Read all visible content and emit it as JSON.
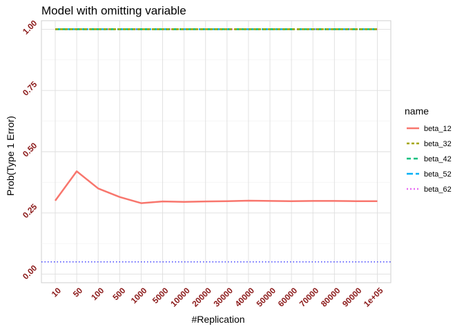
{
  "chart_data": {
    "type": "line",
    "title": "Model with omitting variable",
    "xlabel": "#Replication",
    "ylabel": "Prob(Type 1 Error)",
    "categories": [
      "10",
      "50",
      "100",
      "500",
      "1000",
      "5000",
      "10000",
      "20000",
      "30000",
      "40000",
      "50000",
      "60000",
      "70000",
      "80000",
      "90000",
      "1e+05"
    ],
    "y_ticks": [
      "0.00",
      "0.25",
      "0.50",
      "0.75",
      "1.00"
    ],
    "ylim": [
      -0.035,
      1.035
    ],
    "grid": true,
    "legend": {
      "title": "name",
      "position": "right"
    },
    "series": [
      {
        "name": "beta_12",
        "color": "#F8766D",
        "dash": "solid",
        "values": [
          0.3,
          0.42,
          0.35,
          0.315,
          0.29,
          0.297,
          0.295,
          0.297,
          0.298,
          0.3,
          0.299,
          0.298,
          0.299,
          0.299,
          0.298,
          0.298
        ]
      },
      {
        "name": "beta_32",
        "color": "#A3A500",
        "dash": "short-dash",
        "values": [
          1,
          1,
          1,
          1,
          1,
          1,
          1,
          1,
          1,
          1,
          1,
          1,
          1,
          1,
          1,
          1
        ]
      },
      {
        "name": "beta_42",
        "color": "#00BF7D",
        "dash": "dash",
        "values": [
          1,
          1,
          1,
          1,
          1,
          1,
          1,
          1,
          1,
          1,
          1,
          1,
          1,
          1,
          1,
          1
        ]
      },
      {
        "name": "beta_52",
        "color": "#00B0F6",
        "dash": "long-dash",
        "values": [
          1,
          1,
          1,
          1,
          1,
          1,
          1,
          1,
          1,
          1,
          1,
          1,
          1,
          1,
          1,
          1
        ]
      },
      {
        "name": "beta_62",
        "color": "#E76BF3",
        "dash": "dotted",
        "values": [
          1,
          1,
          1,
          1,
          1,
          1,
          1,
          1,
          1,
          1,
          1,
          1,
          1,
          1,
          1,
          1
        ]
      }
    ],
    "reference_line": {
      "y": 0.05,
      "color": "#0000FF",
      "style": "dotted"
    },
    "tick_label_color": "#8B1A1A"
  }
}
